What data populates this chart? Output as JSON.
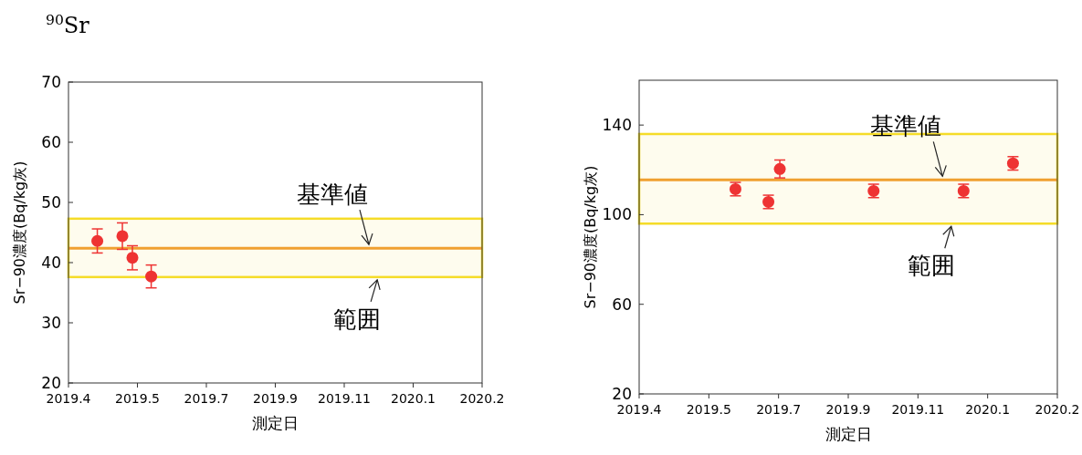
{
  "chart_data": [
    {
      "type": "scatter",
      "title": "$^{90}$Sr",
      "xlabel": "測定日",
      "ylabel": "Sr−90濃度(Bq/kg灰)",
      "marker": "circle",
      "grid": false,
      "xlim": [
        "2019-04-01",
        "2020-02-25"
      ],
      "ylim": [
        20,
        70
      ],
      "xticks": [
        {
          "value": "2019-04-01",
          "label": "2019.4"
        },
        {
          "value": "2019-05-26",
          "label": "2019.5"
        },
        {
          "value": "2019-07-20",
          "label": "2019.7"
        },
        {
          "value": "2019-09-13",
          "label": "2019.9"
        },
        {
          "value": "2019-11-07",
          "label": "2019.11"
        },
        {
          "value": "2020-01-01",
          "label": "2020.1"
        },
        {
          "value": "2020-02-25",
          "label": "2020.2"
        }
      ],
      "yticks": [
        20,
        30,
        40,
        50,
        60,
        70
      ],
      "series": [
        {
          "color": "#ee3333",
          "x": [
            "2019-04-24",
            "2019-05-14",
            "2019-05-22",
            "2019-06-06"
          ],
          "values": [
            43.6,
            44.4,
            40.8,
            37.7
          ],
          "errors": [
            2,
            2.2,
            2,
            1.9
          ]
        }
      ],
      "ref_lines": [
        {
          "axis": "y",
          "value": 42.4,
          "label": "基準値",
          "color": "#f0a030"
        }
      ],
      "bands": [
        {
          "axis": "y",
          "from": 37.6,
          "to": 47.3,
          "label": "範囲",
          "color": "#f5dc28"
        }
      ]
    },
    {
      "type": "scatter",
      "xlabel": "測定日",
      "ylabel": "Sr−90濃度(Bq/kg灰)",
      "marker": "circle",
      "grid": false,
      "xlim": [
        "2019-04-01",
        "2020-02-25"
      ],
      "ylim": [
        20,
        160
      ],
      "xticks": [
        {
          "value": "2019-04-01",
          "label": "2019.4"
        },
        {
          "value": "2019-05-26",
          "label": "2019.5"
        },
        {
          "value": "2019-07-20",
          "label": "2019.7"
        },
        {
          "value": "2019-09-13",
          "label": "2019.9"
        },
        {
          "value": "2019-11-07",
          "label": "2019.11"
        },
        {
          "value": "2020-01-01",
          "label": "2020.1"
        },
        {
          "value": "2020-02-25",
          "label": "2020.2"
        }
      ],
      "yticks": [
        20,
        60,
        100,
        140
      ],
      "series": [
        {
          "color": "#ee3333",
          "x": [
            "2019-06-16",
            "2019-07-12",
            "2019-07-21",
            "2019-10-03",
            "2019-12-13",
            "2020-01-21"
          ],
          "values": [
            111.4,
            105.7,
            120.4,
            110.6,
            110.6,
            122.9
          ],
          "errors": [
            3,
            3,
            4,
            3,
            3,
            3
          ]
        }
      ],
      "ref_lines": [
        {
          "axis": "y",
          "value": 115.5,
          "label": "基準値",
          "color": "#f0a030"
        }
      ],
      "bands": [
        {
          "axis": "y",
          "from": 96,
          "to": 136,
          "label": "範囲",
          "color": "#f5dc28"
        }
      ]
    }
  ]
}
